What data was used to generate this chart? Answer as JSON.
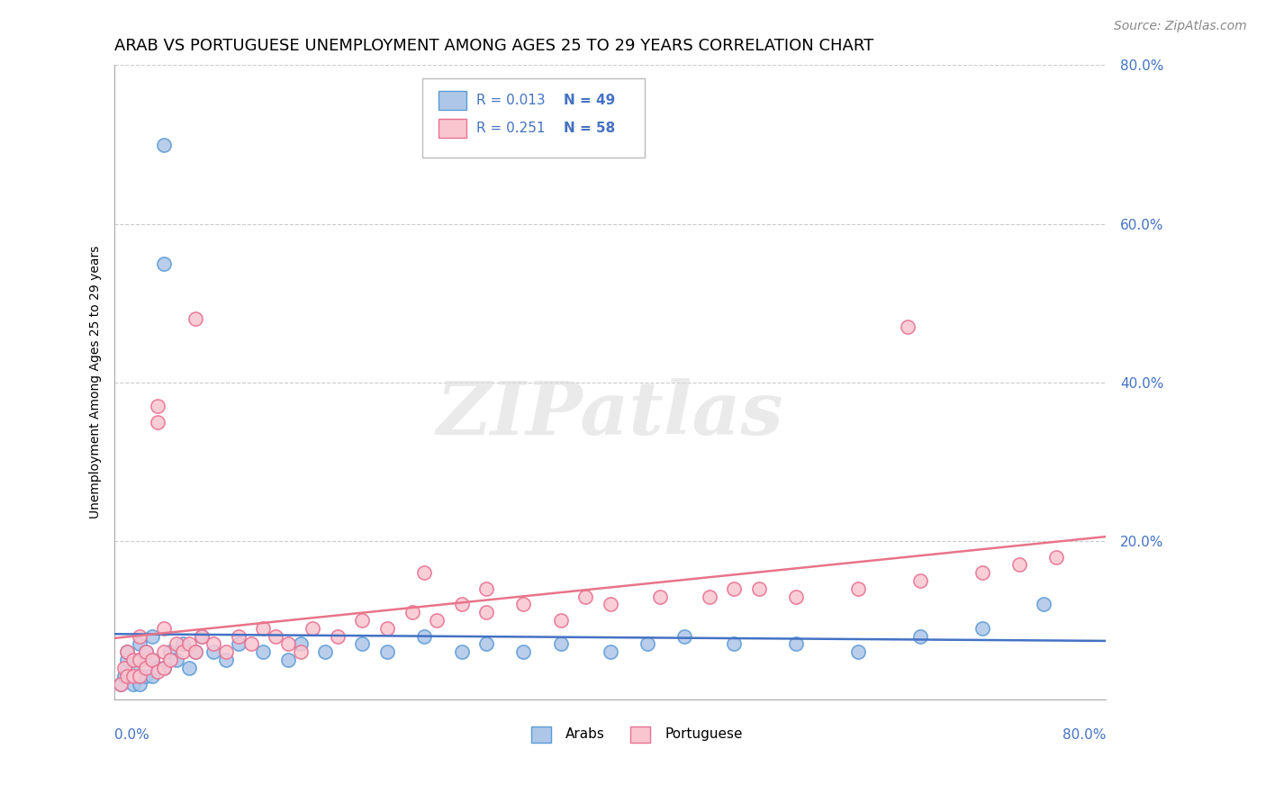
{
  "title": "ARAB VS PORTUGUESE UNEMPLOYMENT AMONG AGES 25 TO 29 YEARS CORRELATION CHART",
  "source": "Source: ZipAtlas.com",
  "ylabel": "Unemployment Among Ages 25 to 29 years",
  "xlim": [
    0,
    0.8
  ],
  "ylim": [
    0,
    0.8
  ],
  "yticks": [
    0.0,
    0.2,
    0.4,
    0.6,
    0.8
  ],
  "ytick_labels": [
    "",
    "20.0%",
    "40.0%",
    "60.0%",
    "80.0%"
  ],
  "arab_color": "#aec6e8",
  "arab_edge_color": "#5b9bd5",
  "portuguese_color": "#f9c6d0",
  "portuguese_edge_color": "#e87090",
  "arab_line_color": "#4472c4",
  "portuguese_line_color": "#e8748a",
  "legend_R_arab": "R = 0.013",
  "legend_N_arab": "N = 49",
  "legend_R_port": "R = 0.251",
  "legend_N_port": "N = 58",
  "legend_text_color": "#4472c4",
  "watermark": "ZIPatlas",
  "title_fontsize": 13,
  "source_fontsize": 10,
  "arab_x": [
    0.005,
    0.008,
    0.01,
    0.01,
    0.01,
    0.015,
    0.015,
    0.02,
    0.02,
    0.02,
    0.02,
    0.025,
    0.025,
    0.03,
    0.03,
    0.03,
    0.035,
    0.04,
    0.04,
    0.04,
    0.045,
    0.05,
    0.055,
    0.06,
    0.065,
    0.07,
    0.08,
    0.09,
    0.1,
    0.12,
    0.14,
    0.15,
    0.17,
    0.2,
    0.22,
    0.25,
    0.28,
    0.3,
    0.33,
    0.36,
    0.4,
    0.43,
    0.46,
    0.5,
    0.55,
    0.6,
    0.65,
    0.7,
    0.75
  ],
  "arab_y": [
    0.02,
    0.03,
    0.04,
    0.05,
    0.06,
    0.02,
    0.04,
    0.02,
    0.03,
    0.05,
    0.07,
    0.03,
    0.06,
    0.03,
    0.05,
    0.08,
    0.04,
    0.04,
    0.55,
    0.7,
    0.06,
    0.05,
    0.07,
    0.04,
    0.06,
    0.08,
    0.06,
    0.05,
    0.07,
    0.06,
    0.05,
    0.07,
    0.06,
    0.07,
    0.06,
    0.08,
    0.06,
    0.07,
    0.06,
    0.07,
    0.06,
    0.07,
    0.08,
    0.07,
    0.07,
    0.06,
    0.08,
    0.09,
    0.12
  ],
  "port_x": [
    0.005,
    0.008,
    0.01,
    0.01,
    0.015,
    0.015,
    0.02,
    0.02,
    0.02,
    0.025,
    0.025,
    0.03,
    0.035,
    0.04,
    0.04,
    0.04,
    0.045,
    0.05,
    0.055,
    0.06,
    0.065,
    0.07,
    0.08,
    0.09,
    0.1,
    0.11,
    0.12,
    0.13,
    0.14,
    0.15,
    0.16,
    0.18,
    0.2,
    0.22,
    0.24,
    0.26,
    0.28,
    0.3,
    0.33,
    0.36,
    0.4,
    0.44,
    0.48,
    0.52,
    0.55,
    0.6,
    0.65,
    0.7,
    0.73,
    0.76,
    0.035,
    0.035,
    0.065,
    0.25,
    0.3,
    0.38,
    0.5,
    0.64
  ],
  "port_y": [
    0.02,
    0.04,
    0.03,
    0.06,
    0.03,
    0.05,
    0.03,
    0.05,
    0.08,
    0.04,
    0.06,
    0.05,
    0.035,
    0.04,
    0.06,
    0.09,
    0.05,
    0.07,
    0.06,
    0.07,
    0.06,
    0.08,
    0.07,
    0.06,
    0.08,
    0.07,
    0.09,
    0.08,
    0.07,
    0.06,
    0.09,
    0.08,
    0.1,
    0.09,
    0.11,
    0.1,
    0.12,
    0.11,
    0.12,
    0.1,
    0.12,
    0.13,
    0.13,
    0.14,
    0.13,
    0.14,
    0.15,
    0.16,
    0.17,
    0.18,
    0.37,
    0.35,
    0.48,
    0.16,
    0.14,
    0.13,
    0.14,
    0.47
  ]
}
